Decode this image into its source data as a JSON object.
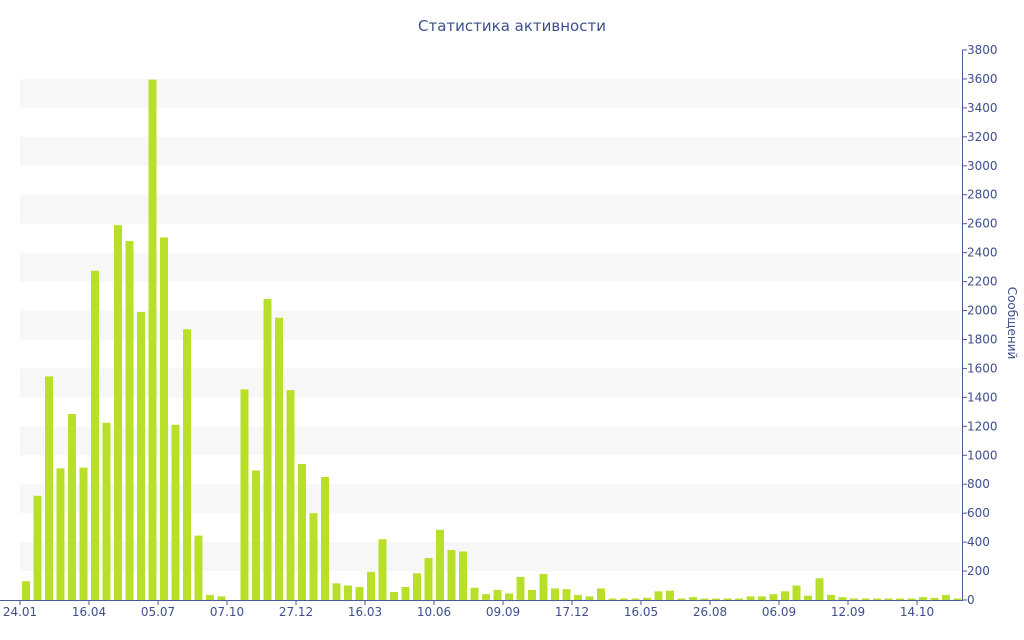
{
  "chart_data": {
    "type": "bar",
    "title": "Статистика активности",
    "xlabel": "",
    "ylabel": "Сообщений",
    "ylim": [
      0,
      3800
    ],
    "y_ticks": [
      0,
      200,
      400,
      600,
      800,
      1000,
      1200,
      1400,
      1600,
      1800,
      2000,
      2200,
      2400,
      2600,
      2800,
      3000,
      3200,
      3400,
      3600,
      3800
    ],
    "y_axis_side": "right",
    "grid": "alternating horizontal bands",
    "legend": "none",
    "x_tick_labels": [
      {
        "index": 0,
        "label": "24.01"
      },
      {
        "index": 6,
        "label": "16.04"
      },
      {
        "index": 12,
        "label": "05.07"
      },
      {
        "index": 18,
        "label": "07.10"
      },
      {
        "index": 24,
        "label": "27.12"
      },
      {
        "index": 30,
        "label": "16.03"
      },
      {
        "index": 36,
        "label": "10.06"
      },
      {
        "index": 42,
        "label": "09.09"
      },
      {
        "index": 48,
        "label": "17.12"
      },
      {
        "index": 54,
        "label": "16.05"
      },
      {
        "index": 60,
        "label": "26.08"
      },
      {
        "index": 66,
        "label": "06.09"
      },
      {
        "index": 72,
        "label": "12.09"
      },
      {
        "index": 78,
        "label": "14.10"
      }
    ],
    "values": [
      130,
      720,
      1545,
      910,
      1285,
      915,
      2275,
      1225,
      2590,
      2480,
      1990,
      3595,
      2505,
      1210,
      1870,
      445,
      35,
      25,
      0,
      1455,
      895,
      2080,
      1950,
      1450,
      940,
      600,
      850,
      115,
      100,
      90,
      195,
      420,
      55,
      90,
      185,
      290,
      485,
      345,
      335,
      85,
      40,
      70,
      45,
      160,
      70,
      180,
      80,
      75,
      35,
      25,
      80,
      10,
      10,
      10,
      15,
      60,
      65,
      10,
      20,
      10,
      10,
      10,
      10,
      25,
      25,
      40,
      60,
      100,
      30,
      150,
      35,
      20,
      10,
      10,
      10,
      10,
      10,
      10,
      20,
      15,
      35,
      10
    ],
    "bar_color": "#b8e02a",
    "band_color": "#f7f7f7",
    "text_color": "#3e4f8c",
    "axis_color": "#4a5a9a"
  }
}
